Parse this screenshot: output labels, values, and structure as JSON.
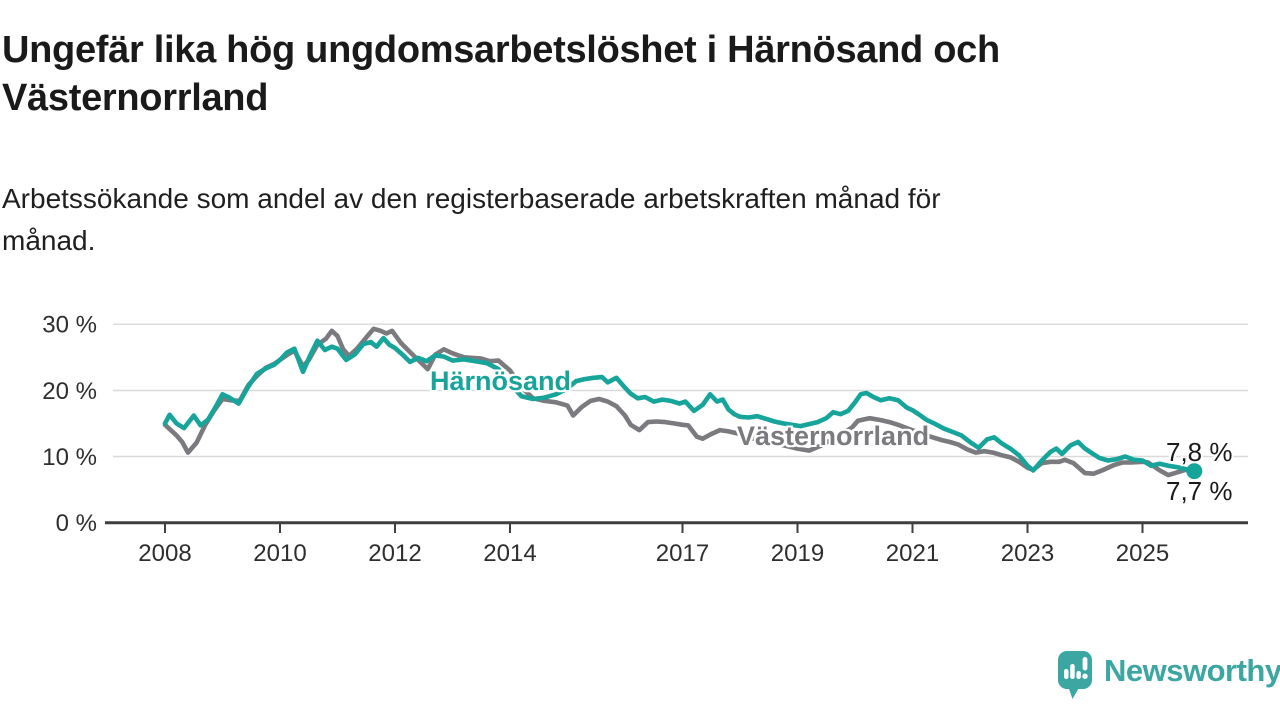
{
  "header": {
    "title_lines": [
      "Ungefär lika hög ungdomsarbetslöshet i Härnösand och",
      "Västernorrland"
    ],
    "subtitle_lines": [
      "Arbetssökande som andel av den registerbaserade arbetskraften månad för",
      "månad."
    ]
  },
  "branding": {
    "logo_text": "Newsworthy",
    "logo_icon": "speech-bubble-bar-chart-icon",
    "logo_color": "#3ba6a2"
  },
  "chart_data": {
    "type": "line",
    "title": "Ungefär lika hög ungdomsarbetslöshet i Härnösand och Västernorrland",
    "subtitle": "Arbetssökande som andel av den registerbaserade arbetskraften månad för månad.",
    "xlabel": "",
    "ylabel": "",
    "unit": "%",
    "grid": "horizontal",
    "legend_position": "inline-labels",
    "ylim": [
      0,
      31
    ],
    "xlim": [
      2007.9,
      2026.4
    ],
    "y_tick_labels": [
      "30 %",
      "20 %",
      "10 %",
      "0 %"
    ],
    "y_tick_values": [
      30,
      20,
      10,
      0
    ],
    "x_tick_labels": [
      "2008",
      "2010",
      "2012",
      "2014",
      "2017",
      "2019",
      "2021",
      "2023",
      "2025"
    ],
    "x_tick_values": [
      2008,
      2010,
      2012,
      2014,
      2017,
      2019,
      2021,
      2023,
      2025
    ],
    "colors": {
      "harnosand": "#17a49a",
      "vasternorrland": "#7b7a7e"
    },
    "series": [
      {
        "name": "Härnösand",
        "color": "#17a49a",
        "end_label": "7,8 %",
        "last_value": 7.8,
        "points": [
          [
            2008.0,
            15.0
          ],
          [
            2008.08,
            16.3
          ],
          [
            2008.2,
            15.0
          ],
          [
            2008.33,
            14.3
          ],
          [
            2008.5,
            16.2
          ],
          [
            2008.62,
            14.7
          ],
          [
            2008.75,
            15.6
          ],
          [
            2008.9,
            17.8
          ],
          [
            2009.0,
            19.4
          ],
          [
            2009.12,
            18.9
          ],
          [
            2009.28,
            18.0
          ],
          [
            2009.45,
            20.6
          ],
          [
            2009.6,
            22.5
          ],
          [
            2009.75,
            23.3
          ],
          [
            2009.9,
            23.9
          ],
          [
            2010.0,
            24.6
          ],
          [
            2010.12,
            25.7
          ],
          [
            2010.25,
            26.3
          ],
          [
            2010.4,
            22.8
          ],
          [
            2010.52,
            25.2
          ],
          [
            2010.65,
            27.5
          ],
          [
            2010.78,
            26.1
          ],
          [
            2010.9,
            26.6
          ],
          [
            2011.0,
            26.3
          ],
          [
            2011.15,
            24.6
          ],
          [
            2011.3,
            25.4
          ],
          [
            2011.45,
            27.0
          ],
          [
            2011.58,
            27.3
          ],
          [
            2011.68,
            26.6
          ],
          [
            2011.8,
            27.9
          ],
          [
            2011.9,
            26.9
          ],
          [
            2012.0,
            26.4
          ],
          [
            2012.13,
            25.4
          ],
          [
            2012.26,
            24.3
          ],
          [
            2012.4,
            24.9
          ],
          [
            2012.55,
            24.4
          ],
          [
            2012.7,
            25.3
          ],
          [
            2012.85,
            25.1
          ],
          [
            2013.0,
            24.5
          ],
          [
            2013.2,
            24.7
          ],
          [
            2013.4,
            24.4
          ],
          [
            2013.6,
            24.1
          ],
          [
            2013.8,
            23.2
          ],
          [
            2014.0,
            21.0
          ],
          [
            2014.2,
            19.1
          ],
          [
            2014.4,
            18.7
          ],
          [
            2014.6,
            18.9
          ],
          [
            2014.8,
            19.4
          ],
          [
            2015.0,
            20.3
          ],
          [
            2015.15,
            21.4
          ],
          [
            2015.3,
            21.7
          ],
          [
            2015.45,
            21.9
          ],
          [
            2015.6,
            22.0
          ],
          [
            2015.7,
            21.2
          ],
          [
            2015.85,
            21.9
          ],
          [
            2016.0,
            20.4
          ],
          [
            2016.1,
            19.5
          ],
          [
            2016.22,
            18.8
          ],
          [
            2016.35,
            19.0
          ],
          [
            2016.5,
            18.3
          ],
          [
            2016.65,
            18.6
          ],
          [
            2016.8,
            18.4
          ],
          [
            2016.95,
            18.0
          ],
          [
            2017.05,
            18.3
          ],
          [
            2017.2,
            16.9
          ],
          [
            2017.35,
            17.8
          ],
          [
            2017.48,
            19.4
          ],
          [
            2017.6,
            18.3
          ],
          [
            2017.7,
            18.6
          ],
          [
            2017.8,
            17.1
          ],
          [
            2017.9,
            16.4
          ],
          [
            2018.0,
            16.0
          ],
          [
            2018.15,
            15.9
          ],
          [
            2018.3,
            16.1
          ],
          [
            2018.45,
            15.7
          ],
          [
            2018.6,
            15.3
          ],
          [
            2018.75,
            15.0
          ],
          [
            2018.9,
            14.8
          ],
          [
            2019.05,
            14.6
          ],
          [
            2019.2,
            14.9
          ],
          [
            2019.35,
            15.2
          ],
          [
            2019.5,
            15.8
          ],
          [
            2019.62,
            16.7
          ],
          [
            2019.75,
            16.4
          ],
          [
            2019.88,
            16.9
          ],
          [
            2020.0,
            18.2
          ],
          [
            2020.1,
            19.4
          ],
          [
            2020.2,
            19.6
          ],
          [
            2020.32,
            19.0
          ],
          [
            2020.45,
            18.5
          ],
          [
            2020.6,
            18.8
          ],
          [
            2020.75,
            18.5
          ],
          [
            2020.9,
            17.4
          ],
          [
            2021.0,
            17.0
          ],
          [
            2021.12,
            16.3
          ],
          [
            2021.25,
            15.5
          ],
          [
            2021.4,
            14.9
          ],
          [
            2021.55,
            14.2
          ],
          [
            2021.7,
            13.7
          ],
          [
            2021.85,
            13.2
          ],
          [
            2022.0,
            12.2
          ],
          [
            2022.15,
            11.3
          ],
          [
            2022.3,
            12.6
          ],
          [
            2022.42,
            12.9
          ],
          [
            2022.55,
            12.0
          ],
          [
            2022.7,
            11.2
          ],
          [
            2022.85,
            10.2
          ],
          [
            2023.0,
            8.6
          ],
          [
            2023.1,
            7.9
          ],
          [
            2023.25,
            9.4
          ],
          [
            2023.4,
            10.7
          ],
          [
            2023.5,
            11.2
          ],
          [
            2023.6,
            10.4
          ],
          [
            2023.75,
            11.7
          ],
          [
            2023.88,
            12.2
          ],
          [
            2024.0,
            11.2
          ],
          [
            2024.12,
            10.5
          ],
          [
            2024.25,
            9.8
          ],
          [
            2024.4,
            9.4
          ],
          [
            2024.55,
            9.6
          ],
          [
            2024.7,
            10.0
          ],
          [
            2024.85,
            9.5
          ],
          [
            2025.0,
            9.4
          ],
          [
            2025.15,
            8.6
          ],
          [
            2025.3,
            8.9
          ],
          [
            2025.45,
            8.6
          ],
          [
            2025.6,
            8.4
          ],
          [
            2025.75,
            8.1
          ],
          [
            2025.9,
            7.8
          ]
        ]
      },
      {
        "name": "Västernorrland",
        "color": "#7b7a7e",
        "end_label": "7,7 %",
        "last_value": 7.7,
        "points": [
          [
            2008.0,
            14.8
          ],
          [
            2008.1,
            14.0
          ],
          [
            2008.2,
            13.2
          ],
          [
            2008.3,
            12.2
          ],
          [
            2008.4,
            10.6
          ],
          [
            2008.55,
            12.1
          ],
          [
            2008.7,
            14.8
          ],
          [
            2008.85,
            16.9
          ],
          [
            2009.0,
            18.7
          ],
          [
            2009.15,
            18.5
          ],
          [
            2009.3,
            18.4
          ],
          [
            2009.45,
            20.8
          ],
          [
            2009.6,
            22.2
          ],
          [
            2009.75,
            23.4
          ],
          [
            2009.9,
            24.0
          ],
          [
            2010.0,
            24.6
          ],
          [
            2010.15,
            25.5
          ],
          [
            2010.25,
            26.0
          ],
          [
            2010.4,
            23.6
          ],
          [
            2010.5,
            24.6
          ],
          [
            2010.65,
            26.9
          ],
          [
            2010.8,
            27.8
          ],
          [
            2010.9,
            29.0
          ],
          [
            2011.0,
            28.2
          ],
          [
            2011.1,
            26.2
          ],
          [
            2011.2,
            25.2
          ],
          [
            2011.35,
            26.4
          ],
          [
            2011.5,
            28.0
          ],
          [
            2011.63,
            29.3
          ],
          [
            2011.75,
            29.0
          ],
          [
            2011.85,
            28.6
          ],
          [
            2011.95,
            29.0
          ],
          [
            2012.1,
            27.2
          ],
          [
            2012.26,
            25.8
          ],
          [
            2012.45,
            24.2
          ],
          [
            2012.57,
            23.2
          ],
          [
            2012.7,
            25.4
          ],
          [
            2012.85,
            26.2
          ],
          [
            2013.0,
            25.6
          ],
          [
            2013.2,
            25.0
          ],
          [
            2013.35,
            24.9
          ],
          [
            2013.5,
            24.8
          ],
          [
            2013.65,
            24.4
          ],
          [
            2013.8,
            24.5
          ],
          [
            2014.0,
            23.0
          ],
          [
            2014.2,
            20.5
          ],
          [
            2014.4,
            18.8
          ],
          [
            2014.6,
            18.4
          ],
          [
            2014.8,
            18.2
          ],
          [
            2015.0,
            17.7
          ],
          [
            2015.1,
            16.2
          ],
          [
            2015.25,
            17.5
          ],
          [
            2015.4,
            18.4
          ],
          [
            2015.55,
            18.7
          ],
          [
            2015.7,
            18.3
          ],
          [
            2015.85,
            17.6
          ],
          [
            2016.0,
            16.2
          ],
          [
            2016.1,
            14.8
          ],
          [
            2016.25,
            14.0
          ],
          [
            2016.4,
            15.2
          ],
          [
            2016.55,
            15.3
          ],
          [
            2016.7,
            15.2
          ],
          [
            2016.85,
            15.0
          ],
          [
            2017.0,
            14.8
          ],
          [
            2017.1,
            14.7
          ],
          [
            2017.25,
            13.0
          ],
          [
            2017.35,
            12.7
          ],
          [
            2017.5,
            13.4
          ],
          [
            2017.65,
            14.0
          ],
          [
            2017.8,
            13.8
          ],
          [
            2018.0,
            13.4
          ],
          [
            2018.2,
            12.8
          ],
          [
            2018.4,
            12.3
          ],
          [
            2018.6,
            12.0
          ],
          [
            2018.8,
            11.6
          ],
          [
            2019.0,
            11.2
          ],
          [
            2019.2,
            10.9
          ],
          [
            2019.4,
            11.6
          ],
          [
            2019.6,
            12.6
          ],
          [
            2019.8,
            13.6
          ],
          [
            2019.95,
            14.4
          ],
          [
            2020.05,
            15.4
          ],
          [
            2020.25,
            15.8
          ],
          [
            2020.45,
            15.5
          ],
          [
            2020.6,
            15.2
          ],
          [
            2020.75,
            14.8
          ],
          [
            2020.9,
            14.3
          ],
          [
            2021.05,
            13.8
          ],
          [
            2021.2,
            13.3
          ],
          [
            2021.35,
            12.9
          ],
          [
            2021.5,
            12.5
          ],
          [
            2021.65,
            12.2
          ],
          [
            2021.8,
            11.8
          ],
          [
            2021.95,
            11.1
          ],
          [
            2022.1,
            10.6
          ],
          [
            2022.25,
            10.8
          ],
          [
            2022.4,
            10.6
          ],
          [
            2022.55,
            10.2
          ],
          [
            2022.7,
            9.9
          ],
          [
            2022.85,
            9.2
          ],
          [
            2023.0,
            8.3
          ],
          [
            2023.1,
            8.0
          ],
          [
            2023.25,
            9.0
          ],
          [
            2023.4,
            9.2
          ],
          [
            2023.55,
            9.2
          ],
          [
            2023.65,
            9.5
          ],
          [
            2023.8,
            9.0
          ],
          [
            2024.0,
            7.5
          ],
          [
            2024.15,
            7.4
          ],
          [
            2024.3,
            7.9
          ],
          [
            2024.5,
            8.7
          ],
          [
            2024.65,
            9.1
          ],
          [
            2024.8,
            9.1
          ],
          [
            2025.0,
            9.2
          ],
          [
            2025.1,
            9.1
          ],
          [
            2025.3,
            7.9
          ],
          [
            2025.45,
            7.2
          ],
          [
            2025.6,
            7.6
          ],
          [
            2025.75,
            8.0
          ],
          [
            2025.9,
            7.7
          ]
        ]
      }
    ]
  }
}
